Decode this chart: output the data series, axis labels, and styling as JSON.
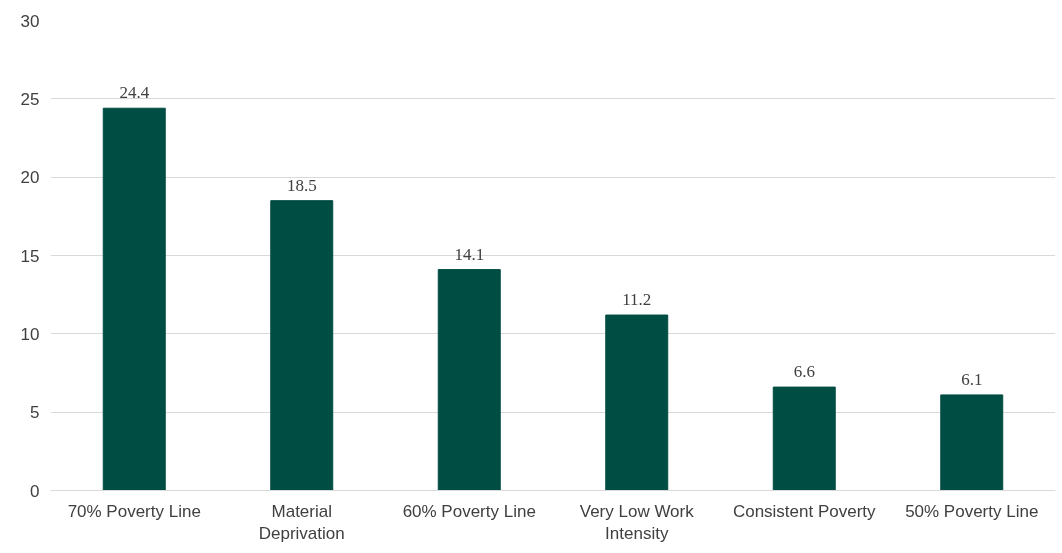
{
  "chart_data": {
    "type": "bar",
    "categories": [
      "70% Poverty Line",
      "Material Deprivation",
      "60% Poverty Line",
      "Very Low Work Intensity",
      "Consistent Poverty",
      "50% Poverty Line"
    ],
    "values": [
      24.4,
      18.5,
      14.1,
      11.2,
      6.6,
      6.1
    ],
    "color": "#004d43",
    "ylim": [
      0,
      30
    ],
    "yticks": [
      0,
      5,
      10,
      15,
      20,
      25,
      30
    ],
    "grid": "y",
    "data_labels": true
  }
}
